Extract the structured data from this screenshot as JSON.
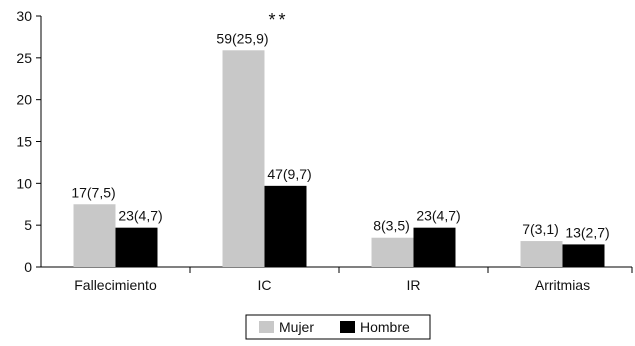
{
  "chart_data": {
    "type": "bar",
    "categories": [
      "Fallecimiento",
      "IC",
      "IR",
      "Arritmias"
    ],
    "series": [
      {
        "name": "Mujer",
        "values": [
          7.5,
          25.9,
          3.5,
          3.1
        ],
        "labels": [
          "17(7,5)",
          "59(25,9)",
          "8(3,5)",
          "7(3,1)"
        ],
        "color": "#c8c8c8"
      },
      {
        "name": "Hombre",
        "values": [
          4.7,
          9.7,
          4.7,
          2.7
        ],
        "labels": [
          "23(4,7)",
          "47(9,7)",
          "23(4,7)",
          "13(2,7)"
        ],
        "color": "#000000"
      }
    ],
    "annotation": {
      "text": "**",
      "category": "IC"
    },
    "yticks": [
      "0",
      "5",
      "10",
      "15",
      "20",
      "25",
      "30"
    ],
    "ylim": [
      0,
      30
    ],
    "title": "",
    "xlabel": "",
    "ylabel": "",
    "grid": false,
    "legend": "bottom-center"
  }
}
